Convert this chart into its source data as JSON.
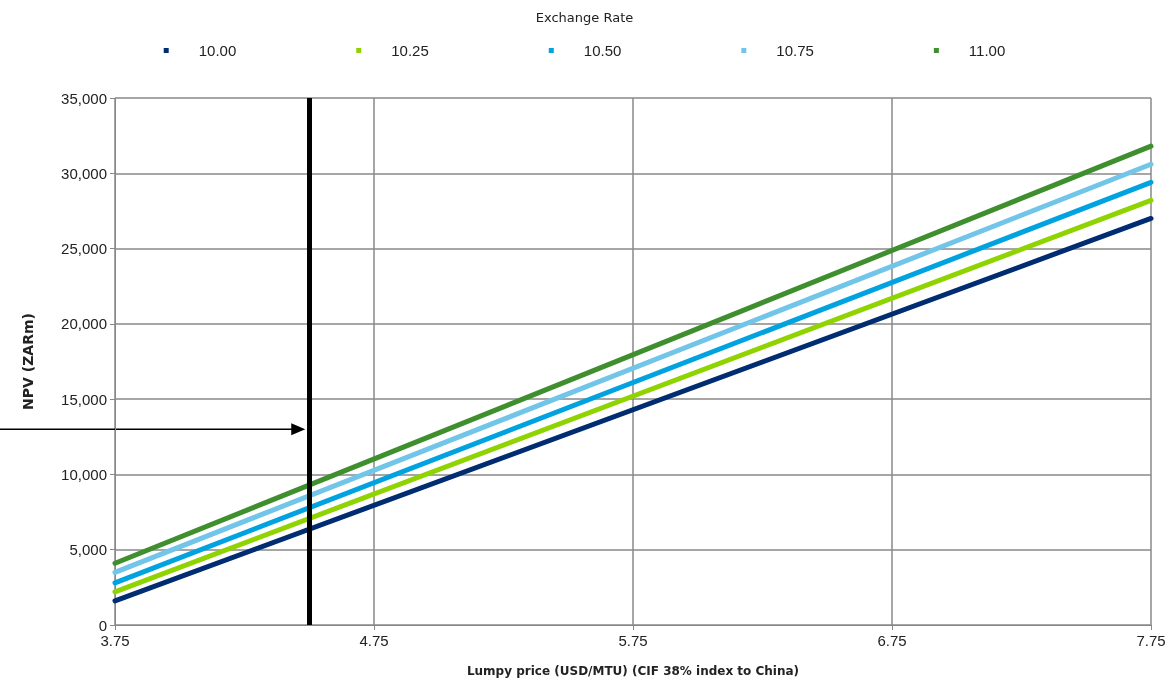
{
  "chart_data": {
    "type": "line",
    "legend_title": "Exchange Rate",
    "xlabel": "Lumpy price (USD/MTU) (CIF 38% index to China)",
    "ylabel": "NPV (ZARm)",
    "x": [
      3.75,
      7.75
    ],
    "series": [
      {
        "name": "10.00",
        "color": "#002d72",
        "values": [
          1600,
          27000
        ]
      },
      {
        "name": "10.25",
        "color": "#8fd400",
        "values": [
          2200,
          28200
        ]
      },
      {
        "name": "10.50",
        "color": "#00a3e0",
        "values": [
          2800,
          29400
        ]
      },
      {
        "name": "10.75",
        "color": "#71c5e8",
        "values": [
          3500,
          30600
        ]
      },
      {
        "name": "11.00",
        "color": "#3f8f2f",
        "values": [
          4100,
          31800
        ]
      }
    ],
    "xlim": [
      3.75,
      7.75
    ],
    "xticks": [
      {
        "value": 3.75,
        "label": "3.75"
      },
      {
        "value": 4.75,
        "label": "4.75"
      },
      {
        "value": 5.75,
        "label": "5.75"
      },
      {
        "value": 6.75,
        "label": "6.75"
      },
      {
        "value": 7.75,
        "label": "7.75"
      }
    ],
    "ylim": [
      0,
      35000
    ],
    "yticks": [
      {
        "value": 0,
        "label": "0"
      },
      {
        "value": 5000,
        "label": "5,000"
      },
      {
        "value": 10000,
        "label": "10,000"
      },
      {
        "value": 15000,
        "label": "15,000"
      },
      {
        "value": 20000,
        "label": "20,000"
      },
      {
        "value": 25000,
        "label": "25,000"
      },
      {
        "value": 30000,
        "label": "30,000"
      },
      {
        "value": 35000,
        "label": "35,000"
      }
    ],
    "ref_lines": [
      {
        "axis": "x",
        "value": 4.5,
        "color": "#000000"
      }
    ],
    "grid": true,
    "legend": "top",
    "marker": "none",
    "line_style": "solid"
  }
}
